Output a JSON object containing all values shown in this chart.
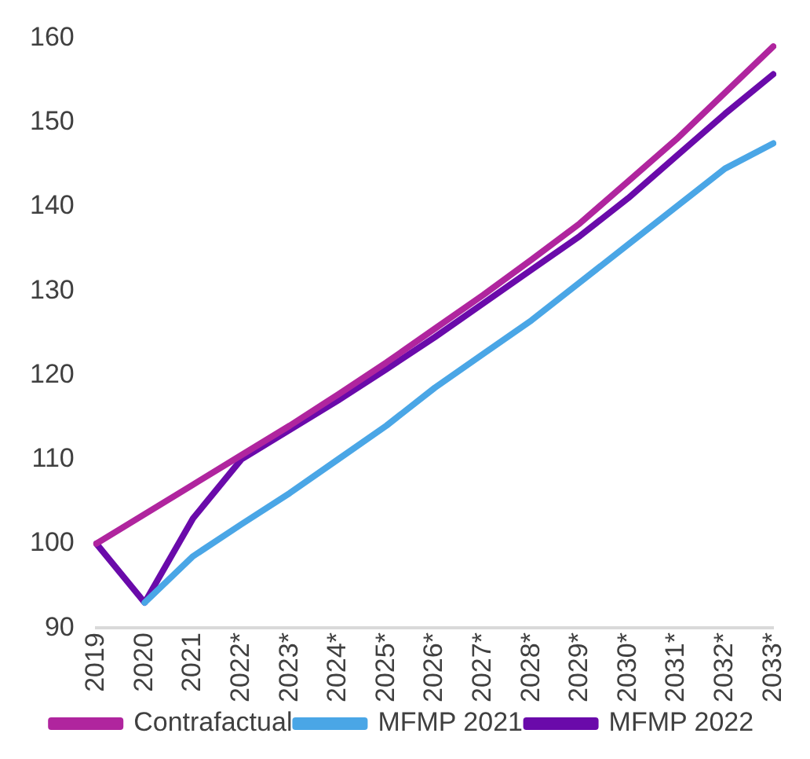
{
  "chart_data": {
    "type": "line",
    "categories": [
      "2019",
      "2020",
      "2021",
      "2022*",
      "2023*",
      "2024*",
      "2025*",
      "2026*",
      "2027*",
      "2028*",
      "2029*",
      "2030*",
      "2031*",
      "2032*",
      "2033*"
    ],
    "series": [
      {
        "name": "Contrafactual",
        "color": "#b0259e",
        "values": [
          100,
          103.5,
          107,
          110.5,
          114,
          117.7,
          121.5,
          125.5,
          129.5,
          133.7,
          138,
          143,
          148,
          153.5,
          159
        ]
      },
      {
        "name": "MFMP 2021",
        "color": "#4aa6e6",
        "values": [
          null,
          93,
          98.5,
          102.3,
          106,
          110,
          114,
          118.5,
          122.5,
          126.5,
          131,
          135.5,
          140,
          144.5,
          147.5
        ]
      },
      {
        "name": "MFMP 2022",
        "color": "#6a0aaa",
        "values": [
          100,
          93,
          103,
          110,
          113.5,
          117,
          120.7,
          124.5,
          128.5,
          132.5,
          136.5,
          141,
          146,
          151,
          155.7
        ]
      }
    ],
    "ylim": [
      90,
      160
    ],
    "yticks": [
      90,
      100,
      110,
      120,
      130,
      140,
      150,
      160
    ],
    "legend": "bottom",
    "marker": "none",
    "line_style": "solid"
  }
}
